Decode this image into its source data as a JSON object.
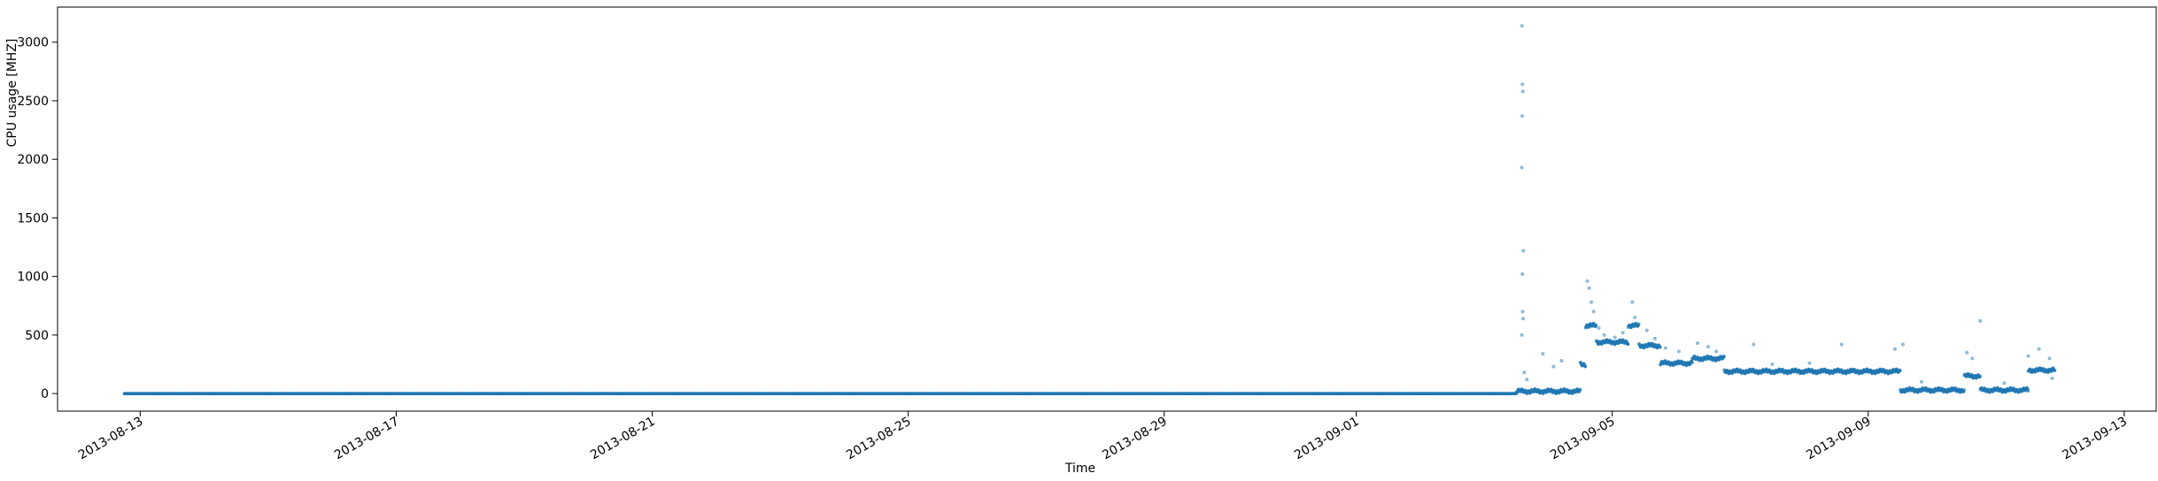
{
  "chart_data": {
    "type": "scatter",
    "title": "",
    "xlabel": "Time",
    "ylabel": "CPU usage [MHZ]",
    "grid": false,
    "legend": "none",
    "marker_color": "#1f77b4",
    "xlim": [
      "2013-08-11T17:00",
      "2013-09-13T12:00"
    ],
    "ylim": [
      -150,
      3300
    ],
    "xticks": [
      "2013-08-13",
      "2013-08-17",
      "2013-08-21",
      "2013-08-25",
      "2013-08-29",
      "2013-09-01",
      "2013-09-05",
      "2013-09-09",
      "2013-09-13"
    ],
    "yticks": [
      0,
      500,
      1000,
      1500,
      2000,
      2500,
      3000
    ],
    "series": [
      {
        "baseline_runs": [
          {
            "start": "2013-08-12T18:00",
            "end": "2013-09-03T12:00",
            "y": 0
          },
          {
            "start": "2013-09-03T12:00",
            "end": "2013-09-04T12:00",
            "y": 20
          },
          {
            "start": "2013-09-04T12:00",
            "end": "2013-09-04T14:00",
            "y": 250
          },
          {
            "start": "2013-09-04T14:00",
            "end": "2013-09-04T18:00",
            "y": 580
          },
          {
            "start": "2013-09-04T18:00",
            "end": "2013-09-05T06:00",
            "y": 440
          },
          {
            "start": "2013-09-05T06:00",
            "end": "2013-09-05T10:00",
            "y": 580
          },
          {
            "start": "2013-09-05T10:00",
            "end": "2013-09-05T18:00",
            "y": 410
          },
          {
            "start": "2013-09-05T18:00",
            "end": "2013-09-06T06:00",
            "y": 260
          },
          {
            "start": "2013-09-06T06:00",
            "end": "2013-09-06T18:00",
            "y": 300
          },
          {
            "start": "2013-09-06T18:00",
            "end": "2013-09-09T12:00",
            "y": 190
          },
          {
            "start": "2013-09-09T12:00",
            "end": "2013-09-10T12:00",
            "y": 30
          },
          {
            "start": "2013-09-10T12:00",
            "end": "2013-09-10T18:00",
            "y": 150
          },
          {
            "start": "2013-09-10T18:00",
            "end": "2013-09-11T12:00",
            "y": 30
          },
          {
            "start": "2013-09-11T12:00",
            "end": "2013-09-11T22:00",
            "y": 200
          }
        ],
        "points": [
          [
            "2013-09-03T14:10",
            3140
          ],
          [
            "2013-09-03T14:20",
            2640
          ],
          [
            "2013-09-03T14:30",
            2580
          ],
          [
            "2013-09-03T14:15",
            2370
          ],
          [
            "2013-09-03T14:05",
            1930
          ],
          [
            "2013-09-03T14:40",
            1220
          ],
          [
            "2013-09-03T14:20",
            1020
          ],
          [
            "2013-09-03T14:25",
            700
          ],
          [
            "2013-09-03T14:35",
            640
          ],
          [
            "2013-09-03T14:05",
            500
          ],
          [
            "2013-09-03T15:00",
            180
          ],
          [
            "2013-09-03T16:00",
            120
          ],
          [
            "2013-09-03T22:00",
            340
          ],
          [
            "2013-09-04T02:00",
            230
          ],
          [
            "2013-09-04T05:00",
            280
          ],
          [
            "2013-09-04T14:40",
            960
          ],
          [
            "2013-09-04T15:20",
            900
          ],
          [
            "2013-09-04T16:10",
            780
          ],
          [
            "2013-09-04T17:00",
            700
          ],
          [
            "2013-09-04T19:00",
            560
          ],
          [
            "2013-09-04T21:00",
            500
          ],
          [
            "2013-09-05T01:00",
            480
          ],
          [
            "2013-09-05T04:00",
            520
          ],
          [
            "2013-09-05T07:30",
            780
          ],
          [
            "2013-09-05T08:30",
            650
          ],
          [
            "2013-09-05T13:00",
            540
          ],
          [
            "2013-09-05T16:00",
            470
          ],
          [
            "2013-09-05T20:00",
            390
          ],
          [
            "2013-09-06T01:00",
            360
          ],
          [
            "2013-09-06T08:00",
            430
          ],
          [
            "2013-09-06T12:00",
            400
          ],
          [
            "2013-09-06T15:00",
            360
          ],
          [
            "2013-09-07T05:00",
            420
          ],
          [
            "2013-09-07T12:00",
            250
          ],
          [
            "2013-09-08T02:00",
            260
          ],
          [
            "2013-09-08T14:00",
            420
          ],
          [
            "2013-09-09T10:00",
            380
          ],
          [
            "2013-09-09T13:00",
            420
          ],
          [
            "2013-09-09T20:00",
            100
          ],
          [
            "2013-09-10T13:00",
            350
          ],
          [
            "2013-09-10T15:00",
            300
          ],
          [
            "2013-09-10T18:00",
            620
          ],
          [
            "2013-09-11T03:00",
            90
          ],
          [
            "2013-09-11T12:00",
            320
          ],
          [
            "2013-09-11T16:00",
            380
          ],
          [
            "2013-09-11T20:00",
            300
          ],
          [
            "2013-09-11T21:00",
            130
          ]
        ]
      }
    ]
  }
}
